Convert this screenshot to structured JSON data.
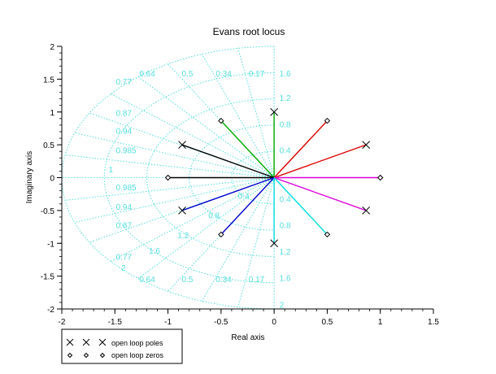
{
  "chart_data": {
    "type": "scatter",
    "title": "Evans root locus",
    "xlabel": "Real axis",
    "ylabel": "Imaginary axis",
    "xlim": [
      -2,
      1.5
    ],
    "ylim": [
      -2,
      2
    ],
    "x_ticks": [
      "-2",
      "-1.5",
      "-1",
      "-0.5",
      "0",
      "0.5",
      "1",
      "1.5"
    ],
    "y_ticks": [
      "-2",
      "-1.5",
      "-1",
      "-0.5",
      "0",
      "0.5",
      "1",
      "1.5",
      "2"
    ],
    "grid_color": "#55dddd",
    "damping_labels": [
      "0.77",
      "0.64",
      "0.5",
      "0.34",
      "0.17",
      "0.87",
      "0.94",
      "0.985",
      "1",
      "0.985",
      "0.94",
      "0.87",
      "0.77",
      "0.64",
      "0.5",
      "0.34",
      "0.17"
    ],
    "freq_labels": [
      "1.6",
      "1.2",
      "0.8",
      "0.4",
      "0.4",
      "0.8",
      "1.2",
      "1.6",
      "2",
      "2",
      "1.6",
      "1.2",
      "0.8",
      "0.4"
    ],
    "open_loop_poles": [
      {
        "x": 0,
        "y": 1
      },
      {
        "x": 0.866,
        "y": 0.5
      },
      {
        "x": -0.866,
        "y": 0.5
      },
      {
        "x": -0.866,
        "y": -0.5
      },
      {
        "x": 0.866,
        "y": -0.5
      },
      {
        "x": 0,
        "y": -1
      }
    ],
    "open_loop_zeros": [
      {
        "x": -0.5,
        "y": 0.866
      },
      {
        "x": 0.5,
        "y": 0.866
      },
      {
        "x": -1,
        "y": 0
      },
      {
        "x": 1,
        "y": 0
      },
      {
        "x": -0.5,
        "y": -0.866
      },
      {
        "x": 0.5,
        "y": -0.866
      }
    ],
    "branches": [
      {
        "color": "#00aa00",
        "points": [
          [
            0,
            0
          ],
          [
            0,
            1
          ]
        ]
      },
      {
        "color": "#00aa00",
        "points": [
          [
            0,
            0
          ],
          [
            -0.5,
            0.866
          ]
        ]
      },
      {
        "color": "#dd0000",
        "points": [
          [
            0,
            0
          ],
          [
            0.5,
            0.866
          ]
        ]
      },
      {
        "color": "#dd0000",
        "points": [
          [
            0,
            0
          ],
          [
            0.866,
            0.5
          ]
        ]
      },
      {
        "color": "#000000",
        "points": [
          [
            0,
            0
          ],
          [
            -0.866,
            0.5
          ]
        ]
      },
      {
        "color": "#000000",
        "points": [
          [
            0,
            0
          ],
          [
            -1,
            0
          ]
        ]
      },
      {
        "color": "#dd00dd",
        "points": [
          [
            0,
            0
          ],
          [
            1,
            0
          ]
        ]
      },
      {
        "color": "#dd00dd",
        "points": [
          [
            0,
            0
          ],
          [
            0.866,
            -0.5
          ]
        ]
      },
      {
        "color": "#0000cc",
        "points": [
          [
            0,
            0
          ],
          [
            -0.866,
            -0.5
          ]
        ]
      },
      {
        "color": "#0000cc",
        "points": [
          [
            0,
            0
          ],
          [
            -0.5,
            -0.866
          ]
        ]
      },
      {
        "color": "#00dddd",
        "points": [
          [
            0,
            0
          ],
          [
            0,
            -1
          ]
        ]
      },
      {
        "color": "#00dddd",
        "points": [
          [
            0,
            0
          ],
          [
            0.5,
            -0.866
          ]
        ]
      }
    ],
    "legend": {
      "placement": "bottom-left",
      "entries": [
        {
          "marker": "x",
          "label": "open loop poles"
        },
        {
          "marker": "diamond",
          "label": "open loop zeros"
        }
      ]
    }
  }
}
